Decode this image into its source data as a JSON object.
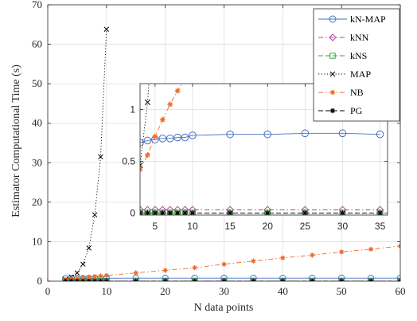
{
  "chart_data": [
    {
      "type": "line",
      "xlabel": "N data points",
      "ylabel": "Estimator Computational Time (s)",
      "xlim": [
        0,
        60
      ],
      "ylim": [
        0,
        70
      ],
      "xticks": [
        0,
        10,
        20,
        30,
        40,
        50,
        60
      ],
      "yticks": [
        0,
        10,
        20,
        30,
        40,
        50,
        60,
        70
      ],
      "grid": true,
      "legend_position": "top-right",
      "series": [
        {
          "name": "kN-MAP",
          "color": "#4472C4",
          "line": "solid",
          "marker": "circle",
          "x": [
            3,
            4,
            5,
            6,
            7,
            8,
            9,
            10,
            15,
            20,
            25,
            30,
            35,
            40,
            45,
            50,
            55,
            60
          ],
          "y": [
            0.68,
            0.7,
            0.71,
            0.72,
            0.72,
            0.73,
            0.73,
            0.75,
            0.76,
            0.76,
            0.77,
            0.77,
            0.76,
            0.76,
            0.76,
            0.76,
            0.76,
            0.76
          ]
        },
        {
          "name": "kNN",
          "color": "#B0479B",
          "line": "dashdot",
          "marker": "diamond",
          "x": [
            3,
            4,
            5,
            6,
            7,
            8,
            9,
            10,
            15,
            20,
            25,
            30,
            35,
            40,
            45,
            50,
            55,
            60
          ],
          "y": [
            0.03,
            0.03,
            0.03,
            0.03,
            0.03,
            0.03,
            0.03,
            0.03,
            0.03,
            0.03,
            0.03,
            0.03,
            0.03,
            0.03,
            0.03,
            0.03,
            0.03,
            0.03
          ]
        },
        {
          "name": "kNS",
          "color": "#3BA33B",
          "line": "dashed",
          "marker": "square",
          "x": [
            3,
            4,
            5,
            6,
            7,
            8,
            9,
            10,
            15,
            20,
            25,
            30,
            35,
            40,
            45,
            50,
            55,
            60
          ],
          "y": [
            0.0,
            0.0,
            0.0,
            0.0,
            0.0,
            0.0,
            0.0,
            0.0,
            0.0,
            0.0,
            0.0,
            0.0,
            0.0,
            0.0,
            0.0,
            0.0,
            0.0,
            0.0
          ]
        },
        {
          "name": "MAP",
          "color": "#000000",
          "line": "dotted",
          "marker": "x",
          "x": [
            3,
            4,
            5,
            6,
            7,
            8,
            9,
            10
          ],
          "y": [
            0.46,
            1.07,
            2.1,
            4.3,
            8.4,
            16.8,
            31.5,
            63.8
          ]
        },
        {
          "name": "NB",
          "color": "#F06A2A",
          "line": "dashdot",
          "marker": "asterisk",
          "x": [
            3,
            4,
            5,
            6,
            7,
            8,
            9,
            10,
            15,
            20,
            25,
            30,
            35,
            40,
            45,
            50,
            55,
            60
          ],
          "y": [
            0.42,
            0.56,
            0.74,
            0.9,
            1.05,
            1.18,
            1.3,
            1.45,
            2.1,
            2.75,
            3.4,
            4.3,
            5.1,
            5.9,
            6.6,
            7.4,
            8.1,
            8.9
          ]
        },
        {
          "name": "PG",
          "color": "#000000",
          "line": "dashed",
          "marker": "asterisk",
          "x": [
            3,
            4,
            5,
            6,
            7,
            8,
            9,
            10,
            15,
            20,
            25,
            30,
            35,
            40,
            45,
            50,
            55,
            60
          ],
          "y": [
            0.0,
            0.0,
            0.0,
            0.0,
            0.0,
            0.0,
            0.0,
            0.0,
            0.0,
            0.0,
            0.0,
            0.0,
            0.0,
            0.0,
            0.0,
            0.0,
            0.0,
            0.0
          ]
        }
      ]
    },
    {
      "type": "line",
      "xlim": [
        3,
        36
      ],
      "ylim": [
        -0.02,
        1.25
      ],
      "xticks": [
        5,
        10,
        15,
        20,
        25,
        30,
        35
      ],
      "yticks": [
        0,
        0.5,
        1
      ],
      "grid": true,
      "series_ref": "same series as main chart (zoomed inset)"
    }
  ]
}
